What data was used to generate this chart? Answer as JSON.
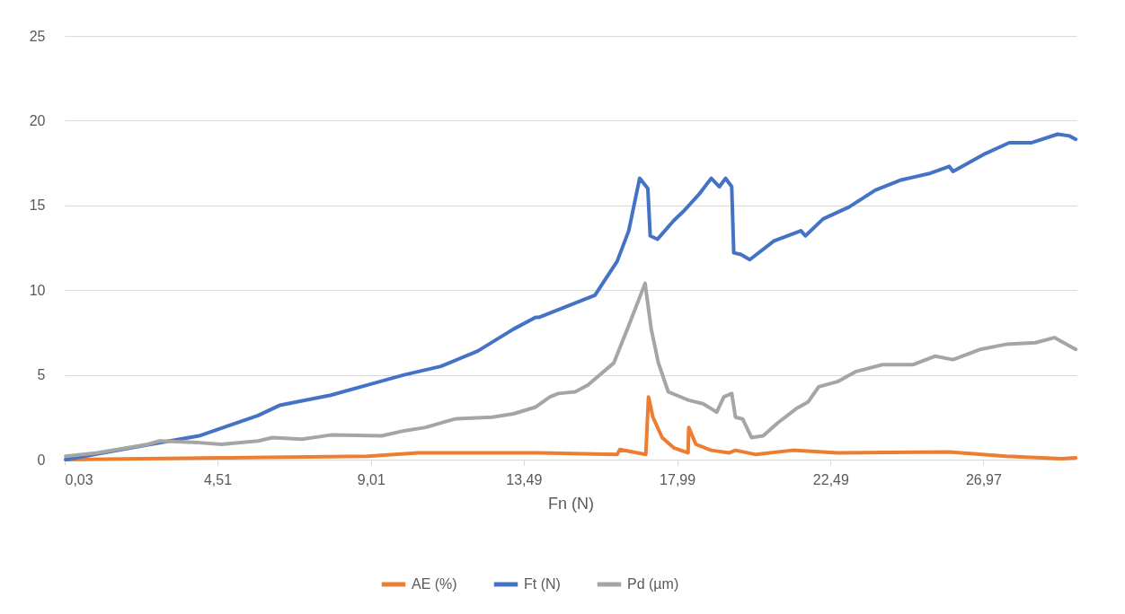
{
  "chart_data": {
    "type": "line",
    "xlabel": "Fn (N)",
    "xlim": [
      0.03,
      29.7
    ],
    "ylim": [
      0,
      25
    ],
    "xticks": [
      {
        "value": 0.03,
        "label": "0,03"
      },
      {
        "value": 4.51,
        "label": "4,51"
      },
      {
        "value": 9.01,
        "label": "9,01"
      },
      {
        "value": 13.49,
        "label": "13,49"
      },
      {
        "value": 17.99,
        "label": "17,99"
      },
      {
        "value": 22.49,
        "label": "22,49"
      },
      {
        "value": 26.97,
        "label": "26,97"
      }
    ],
    "yticks": [
      0,
      5,
      10,
      15,
      20,
      25
    ],
    "grid": "y",
    "legend": "bottom",
    "marker": "none",
    "line_style": "solid",
    "series": [
      {
        "name": "AE (%)",
        "color": "#ed7d31",
        "x": [
          0.06,
          4.63,
          8.91,
          10.4,
          13.19,
          13.95,
          16.23,
          16.31,
          17.07,
          17.15,
          17.28,
          17.55,
          17.89,
          18.31,
          18.33,
          18.54,
          18.99,
          19.52,
          19.7,
          20.3,
          21.38,
          22.69,
          25.97,
          27.63,
          29.26,
          29.68
        ],
        "values": [
          0,
          0.1,
          0.2,
          0.4,
          0.4,
          0.4,
          0.3,
          0.6,
          0.3,
          3.7,
          2.5,
          1.3,
          0.7,
          0.4,
          1.9,
          0.9,
          0.55,
          0.4,
          0.55,
          0.3,
          0.55,
          0.4,
          0.45,
          0.2,
          0.05,
          0.1
        ]
      },
      {
        "name": "Ft (N)",
        "color": "#4472c4",
        "x": [
          0.06,
          2.47,
          3.97,
          5.7,
          6.33,
          7.83,
          8.91,
          9.98,
          11.06,
          12.14,
          13.19,
          13.84,
          13.95,
          15.58,
          16.23,
          16.57,
          16.89,
          17.13,
          17.2,
          17.41,
          17.89,
          18.2,
          18.65,
          18.99,
          19.23,
          19.41,
          19.59,
          19.65,
          19.86,
          20.12,
          20.83,
          21.62,
          21.75,
          22.27,
          23.03,
          23.8,
          24.56,
          25.42,
          25.97,
          26.08,
          26.97,
          27.73,
          28.39,
          29.15,
          29.49,
          29.68
        ],
        "values": [
          0,
          0.87,
          1.4,
          2.6,
          3.2,
          3.8,
          4.4,
          5.0,
          5.5,
          6.4,
          7.7,
          8.4,
          8.4,
          9.7,
          11.7,
          13.5,
          16.6,
          16.0,
          13.2,
          13.0,
          14.1,
          14.7,
          15.7,
          16.6,
          16.1,
          16.6,
          16.1,
          12.2,
          12.1,
          11.8,
          12.9,
          13.5,
          13.2,
          14.2,
          14.9,
          15.9,
          16.5,
          16.9,
          17.3,
          17.0,
          18.0,
          18.7,
          18.7,
          19.2,
          19.1,
          18.9
        ]
      },
      {
        "name": "Pd (µm)",
        "color": "#a5a5a5",
        "x": [
          0.06,
          0.98,
          2.47,
          2.81,
          3.97,
          4.63,
          5.7,
          6.12,
          6.99,
          7.83,
          9.33,
          9.98,
          10.61,
          11.48,
          12.56,
          13.19,
          13.84,
          14.26,
          14.5,
          15.0,
          15.37,
          16.13,
          16.57,
          17.05,
          17.23,
          17.44,
          17.73,
          18.33,
          18.75,
          19.15,
          19.36,
          19.59,
          19.7,
          19.91,
          20.17,
          20.51,
          20.96,
          21.48,
          21.83,
          22.14,
          22.69,
          23.24,
          24.01,
          24.9,
          25.55,
          26.08,
          26.87,
          27.63,
          28.5,
          29.05,
          29.68
        ],
        "values": [
          0.2,
          0.4,
          0.9,
          1.1,
          1.0,
          0.9,
          1.1,
          1.3,
          1.2,
          1.45,
          1.4,
          1.7,
          1.9,
          2.4,
          2.5,
          2.7,
          3.1,
          3.7,
          3.9,
          4.0,
          4.4,
          5.7,
          7.9,
          10.4,
          7.7,
          5.7,
          4.0,
          3.5,
          3.3,
          2.8,
          3.7,
          3.9,
          2.5,
          2.4,
          1.3,
          1.4,
          2.2,
          3.0,
          3.4,
          4.3,
          4.6,
          5.2,
          5.6,
          5.6,
          6.1,
          5.9,
          6.5,
          6.8,
          6.9,
          7.2,
          6.5
        ]
      }
    ]
  }
}
